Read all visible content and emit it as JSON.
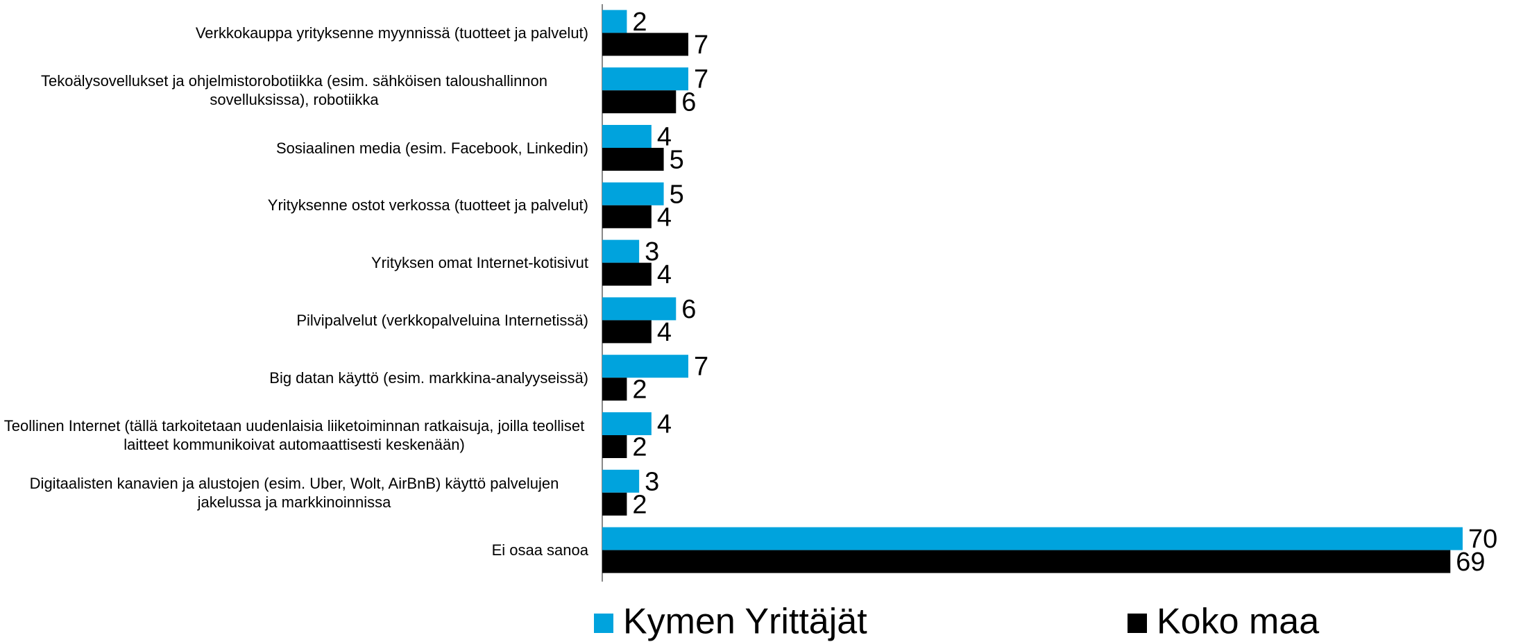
{
  "chart_data": {
    "type": "bar",
    "orientation": "horizontal",
    "categories": [
      "Verkkokauppa yrityksenne myynnissä (tuotteet ja palvelut)",
      "Tekoälysovellukset ja ohjelmistorobotiikka (esim. sähköisen taloushallinnon sovelluksissa), robotiikka",
      "Sosiaalinen media (esim. Facebook, Linkedin)",
      "Yrityksenne ostot verkossa (tuotteet ja palvelut)",
      "Yrityksen omat Internet-kotisivut",
      "Pilvipalvelut  (verkkopalveluina Internetissä)",
      "Big datan käyttö (esim. markkina-analyyseissä)",
      "Teollinen Internet (tällä tarkoitetaan uudenlaisia liiketoiminnan ratkaisuja, joilla teolliset laitteet kommunikoivat automaattisesti keskenään)",
      "Digitaalisten kanavien ja alustojen (esim. Uber, Wolt, AirBnB) käyttö palvelujen jakelussa ja markkinoinnissa",
      "Ei osaa sanoa"
    ],
    "series": [
      {
        "name": "Kymen Yrittäjät",
        "color": "#00a3dd",
        "values": [
          2,
          7,
          4,
          5,
          3,
          6,
          7,
          4,
          3,
          70
        ]
      },
      {
        "name": "Koko maa",
        "color": "#000000",
        "values": [
          7,
          6,
          5,
          4,
          4,
          4,
          2,
          2,
          2,
          69
        ]
      }
    ],
    "legend": "bottom"
  }
}
